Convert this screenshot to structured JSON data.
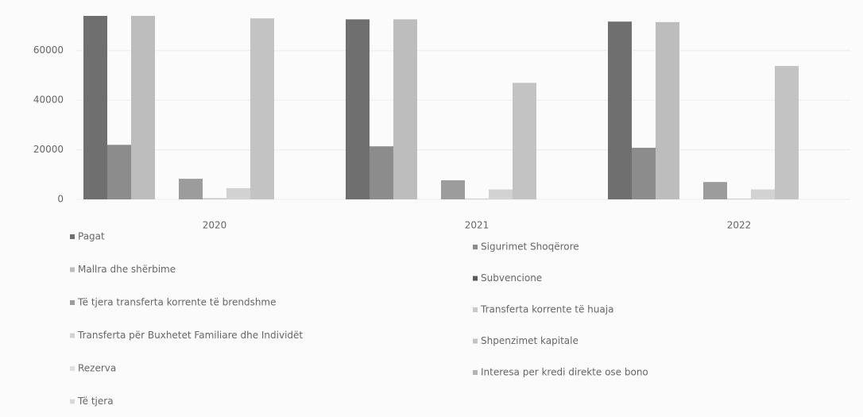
{
  "chart_data": {
    "type": "bar",
    "categories": [
      "2020",
      "2021",
      "2022"
    ],
    "series": [
      {
        "name": "Pagat",
        "color": "#6f6f6f",
        "values": [
          74000,
          72600,
          71700
        ]
      },
      {
        "name": "Sigurimet Shoqërore",
        "color": "#8c8c8c",
        "values": [
          22000,
          21400,
          20800
        ]
      },
      {
        "name": "Mallra dhe shërbime",
        "color": "#bdbdbd",
        "values": [
          74000,
          72600,
          71500
        ]
      },
      {
        "name": "Subvencione",
        "color": "#5a5a5a",
        "values": [
          0,
          0,
          0
        ]
      },
      {
        "name": "Të tjera transferta korrente të brendshme",
        "color": "#9c9c9c",
        "values": [
          8300,
          7700,
          7000
        ]
      },
      {
        "name": "Transferta korrente të huaja",
        "color": "#c9c9c9",
        "values": [
          500,
          300,
          300
        ]
      },
      {
        "name": "Transferta për Buxhetet Familiare dhe Individët",
        "color": "#d2d2d2",
        "values": [
          4500,
          4000,
          4000
        ]
      },
      {
        "name": "Shpenzimet kapitale",
        "color": "#c3c3c3",
        "values": [
          73000,
          47000,
          53800
        ]
      },
      {
        "name": "Rezerva",
        "color": "#e0e0e0",
        "values": [
          0,
          0,
          0
        ]
      },
      {
        "name": "Interesa per kredi direkte ose bono",
        "color": "#b3b3b3",
        "values": [
          0,
          0,
          0
        ]
      },
      {
        "name": "Të tjera",
        "color": "#d9d9d9",
        "values": [
          0,
          0,
          0
        ]
      }
    ],
    "ylim": [
      0,
      74000
    ],
    "yticks": [
      0,
      20000,
      40000,
      60000
    ],
    "grid": true
  }
}
